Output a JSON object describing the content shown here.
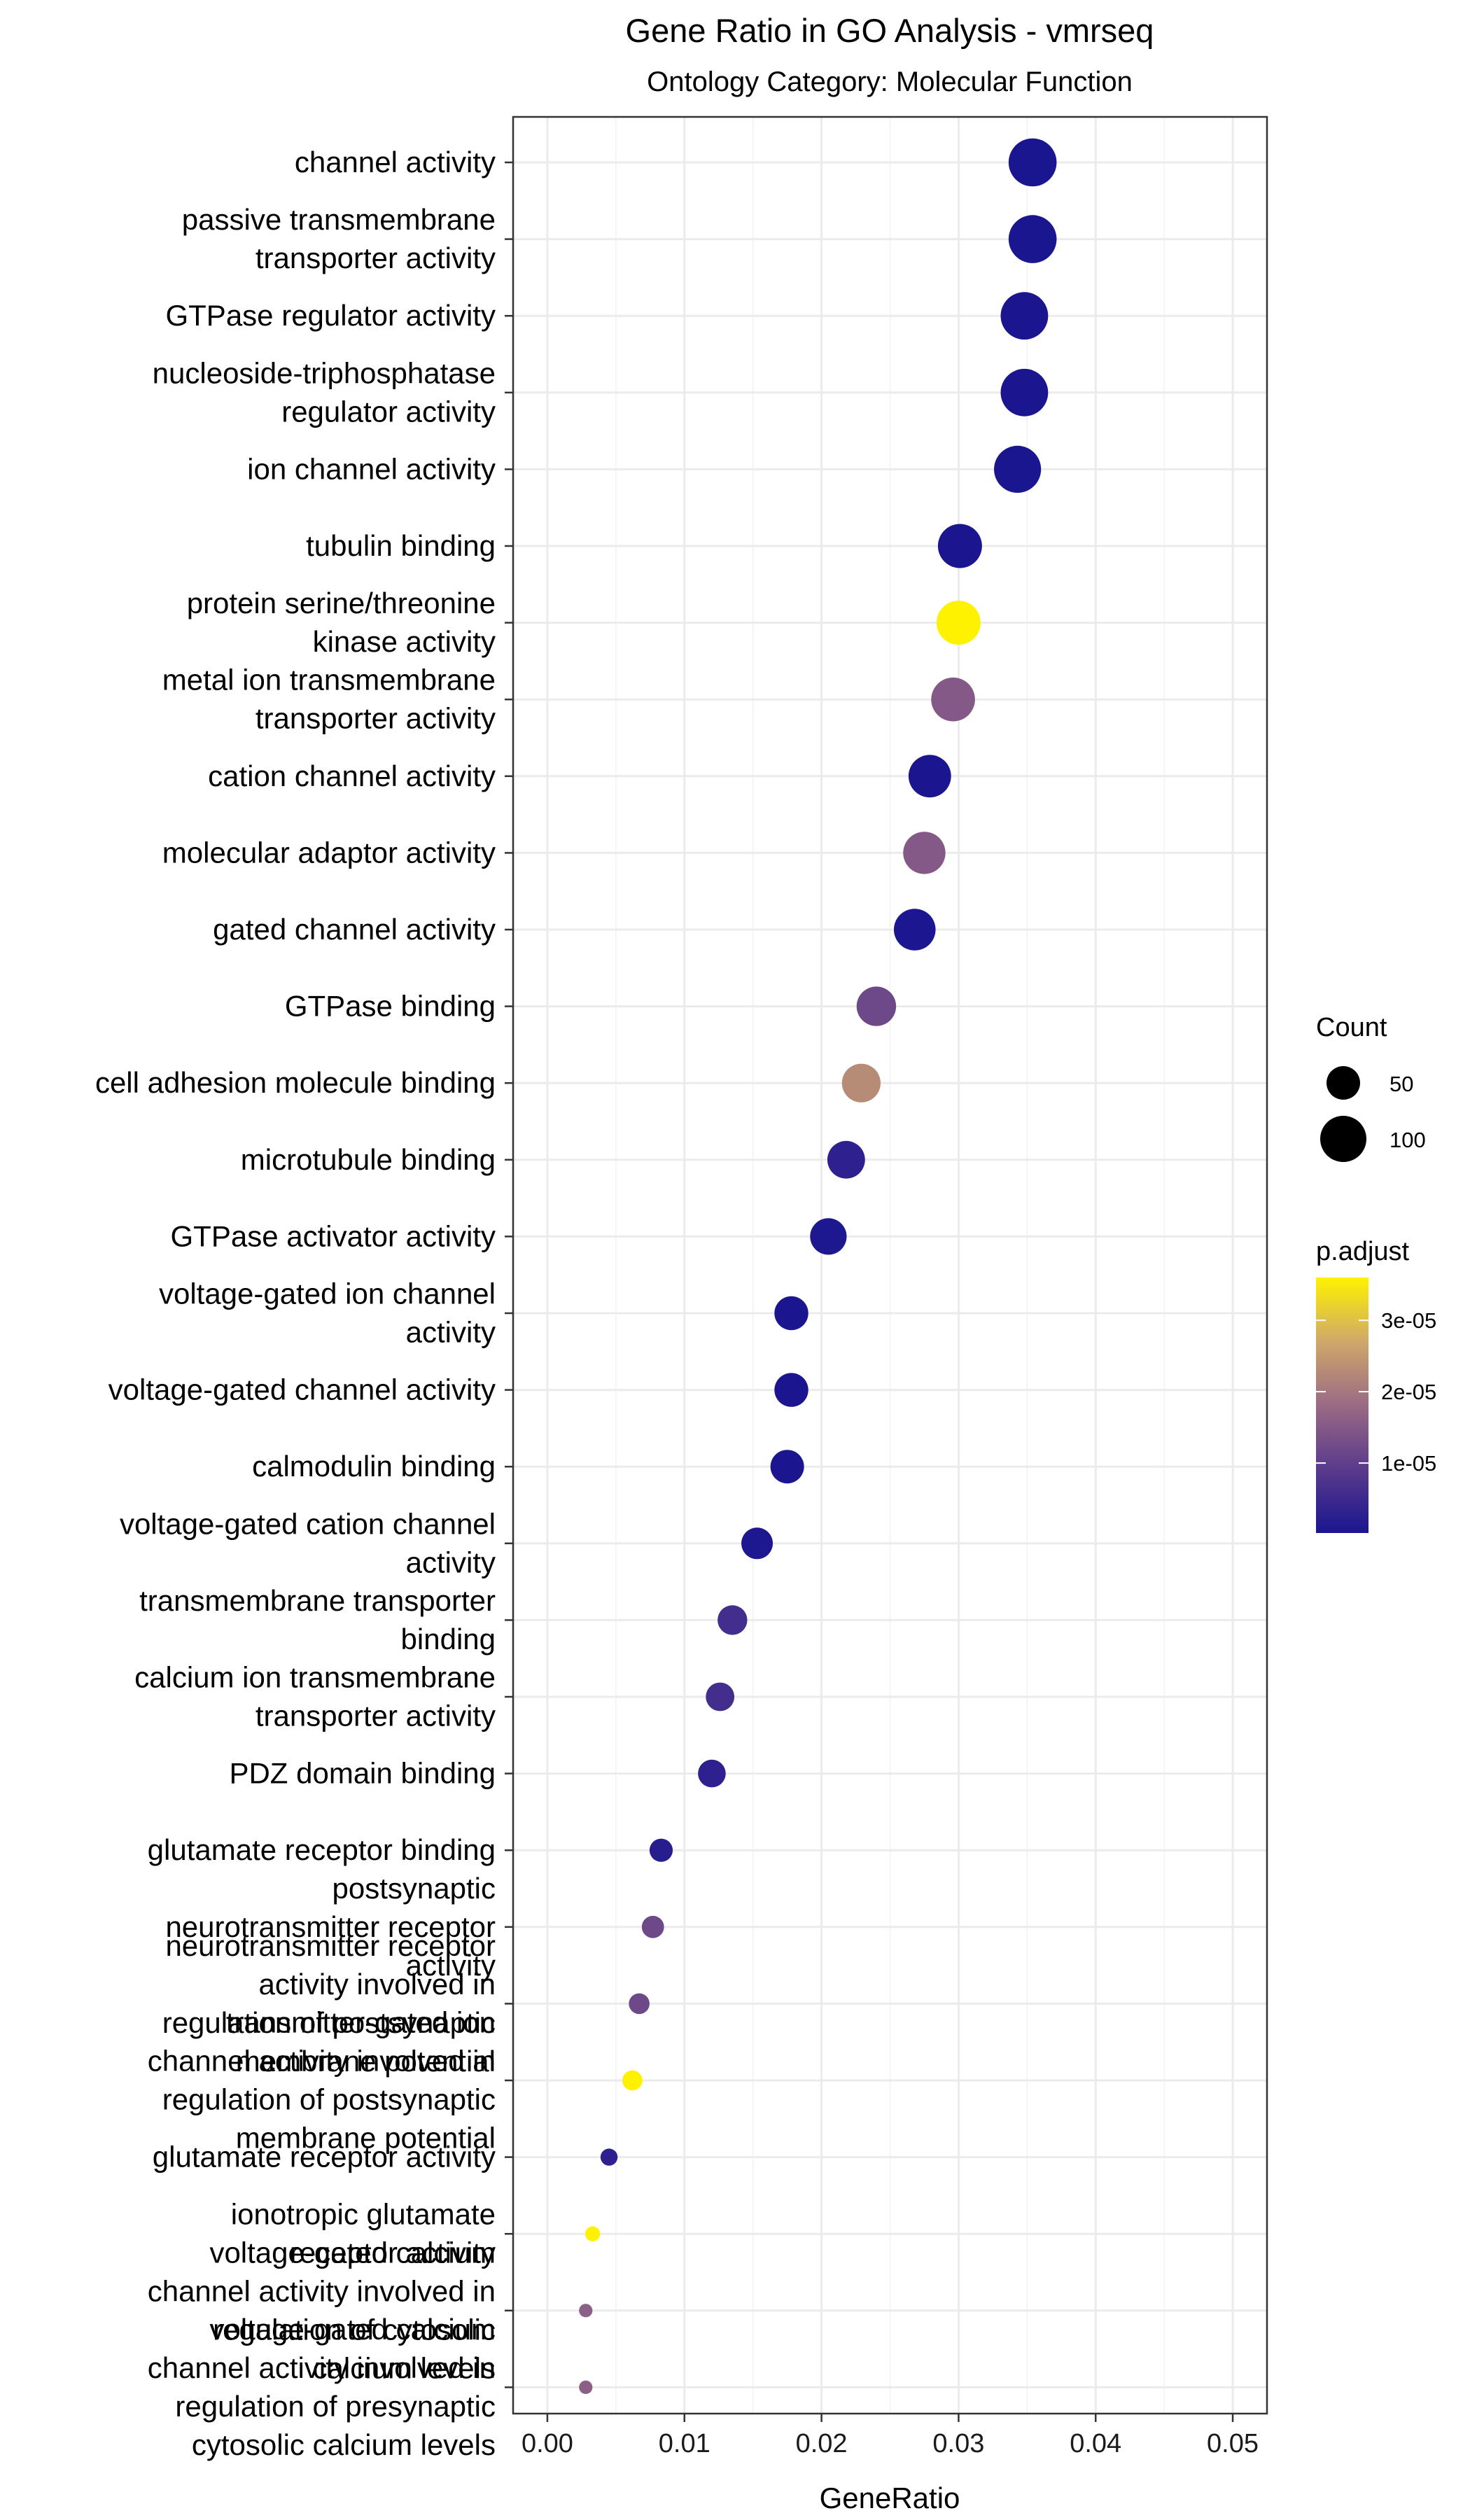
{
  "chart_data": {
    "type": "scatter",
    "title": "Gene Ratio in GO Analysis - vmrseq",
    "subtitle": "Ontology Category: Molecular Function",
    "xlabel": "GeneRatio",
    "ylabel": "",
    "xlim": [
      -0.0025,
      0.0525
    ],
    "x_ticks": [
      0.0,
      0.01,
      0.02,
      0.03,
      0.04,
      0.05
    ],
    "x_tick_labels": [
      "0.00",
      "0.01",
      "0.02",
      "0.03",
      "0.04",
      "0.05"
    ],
    "grid": true,
    "legend_position": "right",
    "size_legend": {
      "title": "Count",
      "entries": [
        {
          "label": "50",
          "value": 50
        },
        {
          "label": "100",
          "value": 100
        }
      ]
    },
    "color_legend": {
      "title": "p.adjust",
      "range": [
        2e-07,
        3.6e-05
      ],
      "ticks": [
        1e-05,
        2e-05,
        3e-05
      ],
      "tick_labels": [
        "1e-05",
        "2e-05",
        "3e-05"
      ],
      "low_color": "#1a1690",
      "mid_color": "#b07d80",
      "high_color": "#fff200"
    },
    "points": [
      {
        "term": "channel activity",
        "label_lines": [
          "channel activity"
        ],
        "x": 0.0354,
        "count": 102,
        "p_adjust": 2e-07
      },
      {
        "term": "passive transmembrane transporter activity",
        "label_lines": [
          "passive transmembrane",
          "transporter activity"
        ],
        "x": 0.0354,
        "count": 102,
        "p_adjust": 2e-07
      },
      {
        "term": "GTPase regulator activity",
        "label_lines": [
          "GTPase regulator activity"
        ],
        "x": 0.0348,
        "count": 100,
        "p_adjust": 3e-07
      },
      {
        "term": "nucleoside-triphosphatase regulator activity",
        "label_lines": [
          "nucleoside-triphosphatase",
          "regulator activity"
        ],
        "x": 0.0348,
        "count": 100,
        "p_adjust": 3e-07
      },
      {
        "term": "ion channel activity",
        "label_lines": [
          "ion channel activity"
        ],
        "x": 0.0343,
        "count": 98,
        "p_adjust": 2e-07
      },
      {
        "term": "tubulin binding",
        "label_lines": [
          "tubulin binding"
        ],
        "x": 0.0301,
        "count": 86,
        "p_adjust": 3e-07
      },
      {
        "term": "protein serine/threonine kinase activity",
        "label_lines": [
          "protein serine/threonine",
          "kinase activity"
        ],
        "x": 0.03,
        "count": 86,
        "p_adjust": 3.6e-05
      },
      {
        "term": "metal ion transmembrane transporter activity",
        "label_lines": [
          "metal ion transmembrane",
          "transporter activity"
        ],
        "x": 0.0296,
        "count": 85,
        "p_adjust": 1.5e-05
      },
      {
        "term": "cation channel activity",
        "label_lines": [
          "cation channel activity"
        ],
        "x": 0.0279,
        "count": 80,
        "p_adjust": 3e-07
      },
      {
        "term": "molecular adaptor activity",
        "label_lines": [
          "molecular adaptor activity"
        ],
        "x": 0.0275,
        "count": 79,
        "p_adjust": 1.5e-05
      },
      {
        "term": "gated channel activity",
        "label_lines": [
          "gated channel activity"
        ],
        "x": 0.0268,
        "count": 77,
        "p_adjust": 5e-07
      },
      {
        "term": "GTPase binding",
        "label_lines": [
          "GTPase binding"
        ],
        "x": 0.024,
        "count": 69,
        "p_adjust": 1.2e-05
      },
      {
        "term": "cell adhesion molecule binding",
        "label_lines": [
          "cell adhesion molecule binding"
        ],
        "x": 0.0229,
        "count": 66,
        "p_adjust": 2.3e-05
      },
      {
        "term": "microtubule binding",
        "label_lines": [
          "microtubule binding"
        ],
        "x": 0.0218,
        "count": 63,
        "p_adjust": 3e-06
      },
      {
        "term": "GTPase activator activity",
        "label_lines": [
          "GTPase activator activity"
        ],
        "x": 0.0205,
        "count": 59,
        "p_adjust": 8e-07
      },
      {
        "term": "voltage-gated ion channel activity",
        "label_lines": [
          "voltage-gated ion channel",
          "activity"
        ],
        "x": 0.0178,
        "count": 51,
        "p_adjust": 3e-07
      },
      {
        "term": "voltage-gated channel activity",
        "label_lines": [
          "voltage-gated channel activity"
        ],
        "x": 0.0178,
        "count": 51,
        "p_adjust": 3e-07
      },
      {
        "term": "calmodulin binding",
        "label_lines": [
          "calmodulin binding"
        ],
        "x": 0.0175,
        "count": 50,
        "p_adjust": 3e-07
      },
      {
        "term": "voltage-gated cation channel activity",
        "label_lines": [
          "voltage-gated cation channel",
          "activity"
        ],
        "x": 0.0153,
        "count": 44,
        "p_adjust": 8e-07
      },
      {
        "term": "transmembrane transporter binding",
        "label_lines": [
          "transmembrane transporter",
          "binding"
        ],
        "x": 0.0135,
        "count": 39,
        "p_adjust": 6e-06
      },
      {
        "term": "calcium ion transmembrane transporter activity",
        "label_lines": [
          "calcium ion transmembrane",
          "transporter activity"
        ],
        "x": 0.0126,
        "count": 36,
        "p_adjust": 6e-06
      },
      {
        "term": "PDZ domain binding",
        "label_lines": [
          "PDZ domain binding"
        ],
        "x": 0.012,
        "count": 34,
        "p_adjust": 3e-06
      },
      {
        "term": "glutamate receptor binding",
        "label_lines": [
          "glutamate receptor binding"
        ],
        "x": 0.0083,
        "count": 24,
        "p_adjust": 2e-06
      },
      {
        "term": "postsynaptic neurotransmitter receptor activity",
        "label_lines": [
          "postsynaptic",
          "neurotransmitter receptor",
          "activity"
        ],
        "x": 0.0077,
        "count": 22,
        "p_adjust": 1.2e-05
      },
      {
        "term": "neurotransmitter receptor activity involved in regulation of postsynaptic membrane potential",
        "label_lines": [
          "neurotransmitter receptor",
          "activity involved in",
          "regulation of postsynaptic",
          "membrane potential"
        ],
        "x": 0.0067,
        "count": 19,
        "p_adjust": 1.2e-05
      },
      {
        "term": "transmitter-gated ion channel activity involved in regulation of postsynaptic membrane potential",
        "label_lines": [
          "transmitter-gated ion",
          "channel activity involved in",
          "regulation of postsynaptic",
          "membrane potential"
        ],
        "x": 0.0062,
        "count": 18,
        "p_adjust": 3.6e-05
      },
      {
        "term": "glutamate receptor activity",
        "label_lines": [
          "glutamate receptor activity"
        ],
        "x": 0.0045,
        "count": 13,
        "p_adjust": 3e-06
      },
      {
        "term": "ionotropic glutamate receptor activity",
        "label_lines": [
          "ionotropic glutamate",
          "receptor activity"
        ],
        "x": 0.0033,
        "count": 10,
        "p_adjust": 3.6e-05
      },
      {
        "term": "voltage-gated calcium channel activity involved in regulation of cytosolic calcium levels",
        "label_lines": [
          "voltage-gated calcium",
          "channel activity involved in",
          "regulation of cytosolic",
          "calcium levels"
        ],
        "x": 0.0028,
        "count": 8,
        "p_adjust": 1.6e-05
      },
      {
        "term": "voltage-gated calcium channel activity involved in regulation of presynaptic cytosolic calcium levels",
        "label_lines": [
          "voltage-gated calcium",
          "channel activity involved in",
          "regulation of presynaptic",
          "cytosolic calcium levels"
        ],
        "x": 0.0028,
        "count": 8,
        "p_adjust": 1.6e-05
      }
    ]
  }
}
